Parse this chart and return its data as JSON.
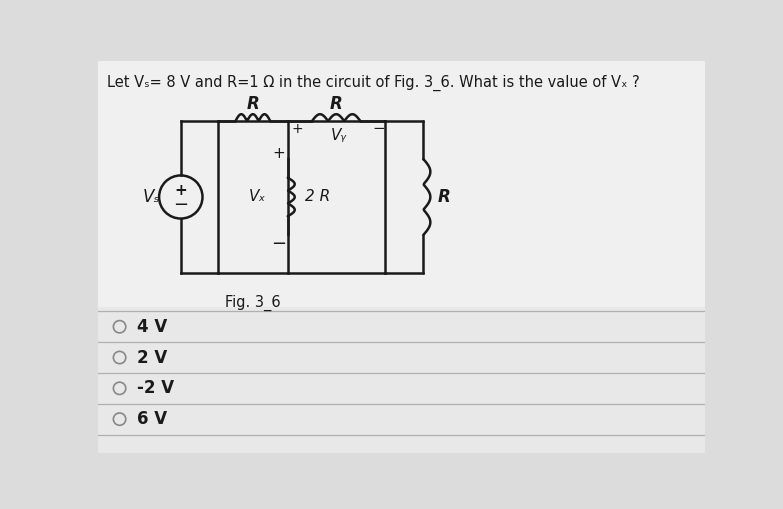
{
  "title": "Let Vₛ= 8 V and R=1 Ω in the circuit of Fig. 3_6. What is the value of Vₓ ?",
  "fig_label": "Fig. 3_6",
  "choices": [
    "4 V",
    "2 V",
    "-2 V",
    "6 V"
  ],
  "bg_color": "#dcdcdc",
  "circuit_bg": "#f5f5f5",
  "line_color": "#1a1a1a",
  "text_color": "#1a1a1a",
  "choice_line_color": "#b0b0b0",
  "radio_color": "#888888",
  "title_fontsize": 10.5,
  "choice_fontsize": 12
}
